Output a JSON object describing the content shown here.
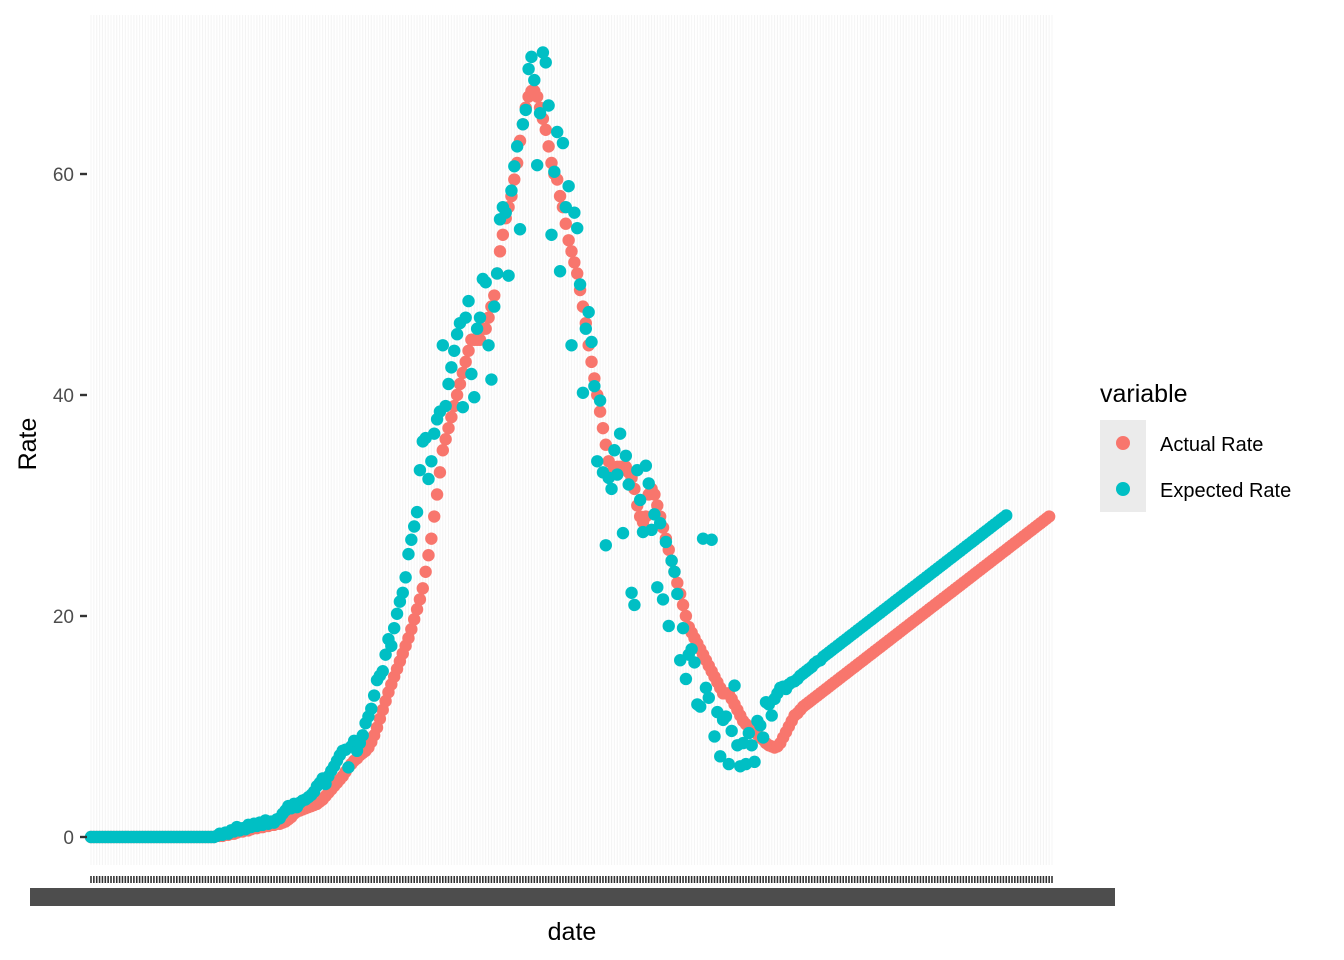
{
  "chart_data": {
    "type": "scatter",
    "title": "",
    "xlabel": "date",
    "ylabel": "Rate",
    "ylim": [
      -3.8,
      73
    ],
    "y_ticks": [
      0,
      20,
      40,
      60
    ],
    "x_tick_labels_overplotted": true,
    "grid": false,
    "legend": {
      "title": "variable",
      "placement": "right"
    },
    "n_points": 337,
    "series": [
      {
        "name": "Actual Rate",
        "color": "#F8766D",
        "values": [
          0,
          0,
          0,
          0,
          0,
          0,
          0,
          0,
          0,
          0,
          0,
          0,
          0,
          0,
          0,
          0,
          0,
          0,
          0,
          0,
          0,
          0,
          0,
          0,
          0,
          0,
          0,
          0,
          0,
          0,
          0,
          0,
          0,
          0,
          0,
          0,
          0,
          0,
          0,
          0,
          0,
          0,
          0,
          0,
          0.1,
          0.1,
          0.1,
          0.2,
          0.2,
          0.3,
          0.3,
          0.4,
          0.5,
          0.5,
          0.6,
          0.6,
          0.7,
          0.8,
          0.8,
          0.9,
          0.9,
          1,
          1,
          1.1,
          1.1,
          1.2,
          1.2,
          1.3,
          1.4,
          1.6,
          1.8,
          2.1,
          2.3,
          2.4,
          2.5,
          2.6,
          2.7,
          2.8,
          2.9,
          3,
          3.2,
          3.4,
          3.7,
          4,
          4.3,
          4.6,
          4.9,
          5.2,
          5.5,
          5.9,
          6.3,
          6.6,
          6.9,
          7.1,
          7.4,
          7.6,
          7.8,
          8.1,
          8.6,
          9.2,
          9.9,
          10.7,
          11.5,
          12.3,
          13.1,
          13.8,
          14.5,
          15.2,
          15.9,
          16.6,
          17.3,
          18,
          18.8,
          19.7,
          20.6,
          21.5,
          22.5,
          24,
          25.5,
          27,
          29,
          31,
          33,
          35,
          36,
          37,
          38,
          39,
          40,
          41,
          42,
          43,
          44,
          45,
          45,
          45,
          45,
          46,
          46,
          47,
          48,
          49,
          51,
          53,
          54.5,
          56,
          57,
          58,
          59.5,
          61,
          63,
          64.5,
          66,
          67,
          67.5,
          67.5,
          67,
          66,
          65,
          64,
          62.5,
          61,
          60,
          59.5,
          58,
          57,
          55.5,
          54,
          53,
          52,
          51,
          49.5,
          48,
          46.5,
          44.5,
          43,
          41.5,
          40,
          38.5,
          37,
          35.5,
          34,
          33,
          33,
          33.5,
          33.5,
          33.5,
          33.5,
          33,
          32.5,
          31.5,
          30,
          29,
          28.5,
          29,
          31,
          31.5,
          31,
          30,
          29,
          28,
          27,
          26,
          25,
          24,
          23,
          22,
          21,
          20,
          19,
          18.5,
          18,
          17.5,
          17,
          16.5,
          16,
          15.5,
          15,
          14.5,
          14,
          13.5,
          13,
          13,
          13,
          12.5,
          12,
          11.5,
          11,
          10.5,
          10.2,
          10,
          9.8,
          9.5,
          9.3,
          9,
          8.8,
          8.5,
          8.3,
          8.2,
          8.1,
          8.2,
          8.5,
          9,
          9.5,
          10,
          10.5,
          11,
          11.2,
          11.5,
          11.8,
          12,
          12.2,
          12.4,
          12.6,
          12.8,
          13,
          13.2,
          13.4,
          13.6,
          13.8,
          14,
          14.2,
          14.4,
          14.6,
          14.8,
          15,
          15.2,
          15.4,
          15.6,
          15.8,
          16,
          16.2,
          16.4,
          16.6,
          16.8,
          17,
          17.2,
          17.4,
          17.6,
          17.8,
          18,
          18.2,
          18.4,
          18.6,
          18.8,
          19,
          19.2,
          19.4,
          19.6,
          19.8,
          20,
          20.2,
          20.4,
          20.6,
          20.8,
          21,
          21.2,
          21.4,
          21.6,
          21.8,
          22,
          22.2,
          22.4,
          22.6,
          22.8,
          23,
          23.2,
          23.4,
          23.6,
          23.8,
          24,
          24.2,
          24.4,
          24.6,
          24.8,
          25,
          25.2,
          25.4,
          25.6,
          25.8,
          26,
          26.2,
          26.4,
          26.6,
          26.8,
          27,
          27.2,
          27.4,
          27.6,
          27.8,
          28,
          28.2,
          28.4,
          28.6,
          28.8,
          29
        ]
      },
      {
        "name": "Expected Rate",
        "color": "#00BFC4",
        "values": [
          0,
          0,
          0,
          0,
          0,
          0,
          0,
          0,
          0,
          0,
          0,
          0,
          0,
          0,
          0,
          0,
          0,
          0,
          0,
          0,
          0,
          0,
          0,
          0,
          0,
          0,
          0,
          0,
          0,
          0,
          0,
          0,
          0,
          0,
          0,
          0,
          0,
          0,
          0,
          0,
          0,
          0,
          0,
          0,
          0.1,
          0.3,
          0.2,
          0.4,
          0.3,
          0.6,
          0.5,
          0.9,
          0.6,
          0.8,
          0.7,
          1.1,
          0.9,
          1.2,
          1,
          1.3,
          1.1,
          1.5,
          1.2,
          1.4,
          1.3,
          1.6,
          1.7,
          2.1,
          2.4,
          2.8,
          2.6,
          3,
          2.7,
          3.1,
          3.3,
          3.4,
          3.6,
          3.8,
          4.1,
          4.6,
          4.9,
          5.3,
          4.8,
          5.5,
          6,
          6.4,
          6.9,
          7.4,
          7.8,
          7.9,
          6.3,
          8.2,
          8.7,
          7.8,
          8.5,
          9.2,
          10.3,
          10.9,
          11.6,
          12.8,
          14.2,
          14.6,
          15,
          16.5,
          17.9,
          17.3,
          18.9,
          20.2,
          21.3,
          22.1,
          23.5,
          25.6,
          26.9,
          28.1,
          29.4,
          33.2,
          35.8,
          36.1,
          32.4,
          34,
          36.5,
          37.8,
          38.5,
          44.5,
          39,
          41,
          42.5,
          44,
          45.5,
          46.5,
          38.9,
          47,
          48.5,
          41.9,
          39.8,
          46,
          47,
          50.5,
          50.2,
          44.5,
          41.4,
          48,
          51,
          55.9,
          57,
          56.5,
          50.8,
          58.5,
          60.7,
          62.5,
          55,
          64.5,
          65.8,
          69.5,
          70.6,
          68.5,
          60.8,
          65.5,
          71,
          70.1,
          66.2,
          54.5,
          60.2,
          63.8,
          51.2,
          62.8,
          57,
          58.9,
          44.5,
          56.5,
          55.1,
          50,
          40.2,
          46,
          47.5,
          44.8,
          40.8,
          34,
          39.5,
          33,
          26.4,
          32.5,
          31.5,
          35,
          32.8,
          36.5,
          27.5,
          34.5,
          31.9,
          22.1,
          21,
          33.2,
          30.5,
          27.6,
          33.6,
          32,
          27.8,
          29.2,
          22.6,
          28.4,
          21.5,
          26.7,
          19.1,
          25,
          24,
          22,
          16,
          18.9,
          14.3,
          16.5,
          17,
          15.8,
          12,
          11.8,
          27,
          13.5,
          12.6,
          26.9,
          9.1,
          11.3,
          7.3,
          10.6,
          10.9,
          6.6,
          9.6,
          13.7,
          8.3,
          6.4,
          8.5,
          6.6,
          9.4,
          8.3,
          6.8,
          10.5,
          10.1,
          9,
          12.2,
          12,
          11,
          12.5,
          13,
          13.5,
          13.6,
          13.4,
          13.8,
          14,
          14.1,
          14.3,
          14.6,
          14.8,
          15,
          15.2,
          15.4,
          15.7,
          15.9,
          16,
          16.3,
          16.5,
          16.7,
          16.9,
          17.1,
          17.3,
          17.5,
          17.7,
          17.9,
          18.1,
          18.3,
          18.5,
          18.7,
          18.9,
          19.1,
          19.3,
          19.5,
          19.7,
          19.9,
          20.1,
          20.3,
          20.5,
          20.7,
          20.9,
          21.1,
          21.3,
          21.5,
          21.7,
          21.9,
          22.1,
          22.3,
          22.5,
          22.7,
          22.9,
          23.1,
          23.3,
          23.5,
          23.7,
          23.9,
          24.1,
          24.3,
          24.5,
          24.7,
          24.9,
          25.1,
          25.3,
          25.5,
          25.7,
          25.9,
          26.1,
          26.3,
          26.5,
          26.7,
          26.9,
          27.1,
          27.3,
          27.5,
          27.7,
          27.9,
          28.1,
          28.3,
          28.5,
          28.7,
          28.9,
          29.1
        ]
      }
    ]
  }
}
